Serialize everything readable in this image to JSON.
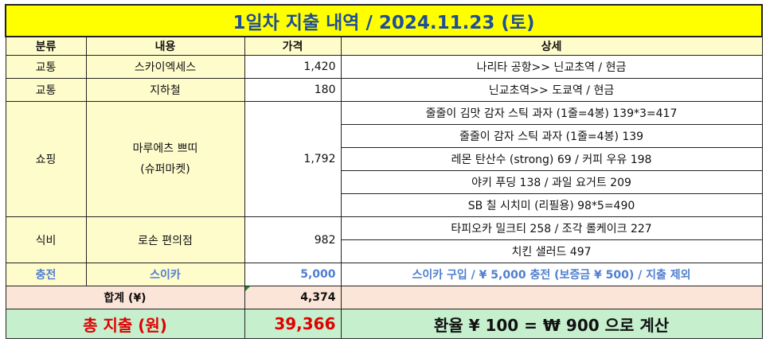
{
  "title": "1일차 지출 내역 / 2024.11.23 (토)",
  "headers": {
    "category": "분류",
    "content": "내용",
    "price": "가격",
    "detail": "상세"
  },
  "rows": {
    "transport1": {
      "category": "교통",
      "content": "스카이엑세스",
      "price": "1,420",
      "detail": "나리타 공항>> 닌교초역 / 현금"
    },
    "transport2": {
      "category": "교통",
      "content": "지하철",
      "price": "180",
      "detail": "닌교초역>> 도쿄역 / 현금"
    },
    "shopping": {
      "category": "쇼핑",
      "content_line1": "마루에츠 쁘띠",
      "content_line2": "(슈퍼마켓)",
      "price": "1,792",
      "details": [
        "줄줄이 김맛 감자 스틱 과자 (1줄=4봉) 139*3=417",
        "줄줄이 감자 스틱 과자 (1줄=4봉) 139",
        "레몬 탄산수 (strong) 69 / 커피 우유 198",
        "야키 푸딩 138 / 과일 요거트 209",
        "SB 칠 시치미 (리필용) 98*5=490"
      ]
    },
    "food": {
      "category": "식비",
      "content": "로손 편의점",
      "price": "982",
      "details": [
        "타피오카 밀크티 258 / 조각 롤케이크 227",
        "치킨 샐러드 497"
      ]
    },
    "charge": {
      "category": "충전",
      "content": "스이카",
      "price": "5,000",
      "detail": "스이카 구입 / ¥ 5,000 충전 (보증금 ¥ 500) / 지출 제외"
    }
  },
  "sum": {
    "label": "합계 (¥)",
    "value": "4,374"
  },
  "total": {
    "label": "총 지출 (원)",
    "value": "39,366",
    "rate": "환율  ¥ 100 = ₩ 900 으로 계산"
  },
  "colors": {
    "title_bg": "#ffff00",
    "title_text": "#1f4e9a",
    "header_bg": "#fffccc",
    "charge_text": "#4f7fd0",
    "sum_bg": "#fbe4d8",
    "total_bg": "#c6efce",
    "total_text": "#e00000"
  }
}
